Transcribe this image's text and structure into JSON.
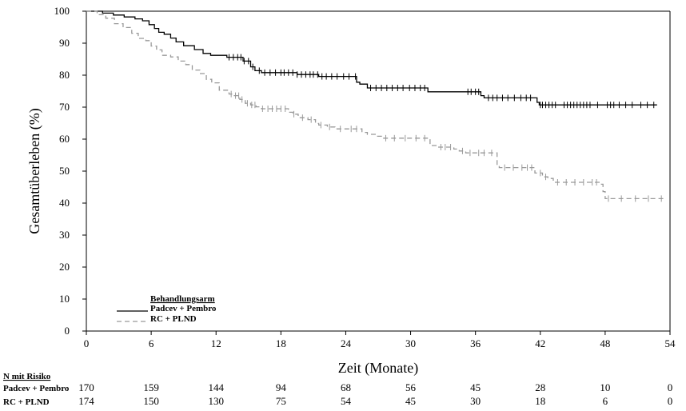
{
  "chart_data": {
    "type": "line",
    "xlabel": "Zeit (Monate)",
    "ylabel": "Gesamtüberleben (%)",
    "xlim": [
      0,
      54
    ],
    "ylim": [
      0,
      100
    ],
    "x_ticks": [
      0,
      6,
      12,
      18,
      24,
      30,
      36,
      42,
      48,
      54
    ],
    "y_ticks": [
      0,
      10,
      20,
      30,
      40,
      50,
      60,
      70,
      80,
      90,
      100
    ],
    "legend": {
      "title": "Behandlungsarm",
      "position": "bottom-left",
      "entries": [
        "Padcev + Pembro",
        "RC + PLND"
      ]
    },
    "series": [
      {
        "name": "Padcev + Pembro",
        "color": "#000000",
        "style": "solid",
        "step": [
          [
            0,
            100
          ],
          [
            1.5,
            99.4
          ],
          [
            2.5,
            98.8
          ],
          [
            3.5,
            98.2
          ],
          [
            4.5,
            97.6
          ],
          [
            5.2,
            97
          ],
          [
            5.8,
            95.8
          ],
          [
            6.3,
            94.6
          ],
          [
            6.7,
            93.4
          ],
          [
            7.2,
            92.8
          ],
          [
            7.8,
            91.6
          ],
          [
            8.3,
            90.4
          ],
          [
            9,
            89.2
          ],
          [
            10,
            88
          ],
          [
            10.8,
            86.8
          ],
          [
            11.5,
            86.2
          ],
          [
            13,
            85.6
          ],
          [
            14.5,
            84.4
          ],
          [
            15.2,
            82.6
          ],
          [
            15.6,
            81.4
          ],
          [
            16.2,
            80.8
          ],
          [
            19.5,
            80.2
          ],
          [
            21.5,
            79.6
          ],
          [
            25,
            77.8
          ],
          [
            25.3,
            77.2
          ],
          [
            26,
            76
          ],
          [
            31.6,
            74.8
          ],
          [
            36.5,
            73.6
          ],
          [
            36.8,
            72.9
          ],
          [
            41.7,
            71.5
          ],
          [
            41.9,
            70.7
          ],
          [
            52.8,
            70.7
          ]
        ],
        "censor": [
          13.2,
          13.6,
          14,
          14.3,
          14.6,
          15,
          15.4,
          16,
          16.5,
          17,
          17.5,
          18,
          18.3,
          18.7,
          19.1,
          19.5,
          19.9,
          20.3,
          20.7,
          21,
          21.4,
          21.8,
          22.2,
          22.7,
          23.2,
          23.8,
          24.3,
          24.9,
          26.3,
          26.8,
          27.3,
          27.8,
          28.3,
          28.8,
          29.3,
          29.9,
          30.4,
          30.9,
          31.3,
          35.3,
          35.6,
          36,
          36.3,
          37.2,
          37.6,
          38,
          38.5,
          39,
          39.6,
          40.2,
          40.7,
          41.1,
          42,
          42.2,
          42.5,
          42.8,
          43.1,
          43.4,
          44.2,
          44.5,
          44.8,
          45.1,
          45.4,
          45.7,
          46,
          46.3,
          46.6,
          47.3,
          48.2,
          48.5,
          48.8,
          49.3,
          49.9,
          50.5,
          51.3,
          51.9,
          52.5
        ]
      },
      {
        "name": "RC + PLND",
        "color": "#999999",
        "style": "dashed",
        "step": [
          [
            0,
            100
          ],
          [
            1,
            98.9
          ],
          [
            1.8,
            97.8
          ],
          [
            2.6,
            96.1
          ],
          [
            3.4,
            94.9
          ],
          [
            4.2,
            93.1
          ],
          [
            4.8,
            91.5
          ],
          [
            5.5,
            90.8
          ],
          [
            6,
            89.1
          ],
          [
            6.5,
            87.9
          ],
          [
            7,
            86.2
          ],
          [
            7.8,
            85.7
          ],
          [
            8.5,
            84.4
          ],
          [
            9.2,
            83.3
          ],
          [
            9.8,
            81.6
          ],
          [
            10.5,
            80.5
          ],
          [
            11.1,
            78.7
          ],
          [
            11.6,
            77.6
          ],
          [
            12.3,
            75.3
          ],
          [
            13.2,
            74.1
          ],
          [
            13.6,
            73.6
          ],
          [
            14.2,
            72.4
          ],
          [
            14.7,
            71.2
          ],
          [
            15.2,
            70.7
          ],
          [
            15.7,
            70.1
          ],
          [
            16.2,
            69.5
          ],
          [
            18.7,
            68.4
          ],
          [
            19.1,
            67.8
          ],
          [
            19.6,
            66.7
          ],
          [
            20.5,
            66.1
          ],
          [
            21.2,
            64.9
          ],
          [
            21.5,
            64.4
          ],
          [
            22.3,
            63.8
          ],
          [
            23,
            63.2
          ],
          [
            25.5,
            62.1
          ],
          [
            26,
            61.5
          ],
          [
            26.8,
            60.9
          ],
          [
            27.3,
            60.3
          ],
          [
            31.8,
            58
          ],
          [
            32.5,
            57.5
          ],
          [
            34,
            56.9
          ],
          [
            34.5,
            56.3
          ],
          [
            35.1,
            55.7
          ],
          [
            38,
            51.7
          ],
          [
            38.2,
            51.1
          ],
          [
            41.5,
            49.4
          ],
          [
            42.2,
            48.2
          ],
          [
            42.7,
            47.7
          ],
          [
            43.2,
            46.5
          ],
          [
            47.5,
            45.9
          ],
          [
            47.8,
            43.6
          ],
          [
            48,
            41.4
          ],
          [
            53.5,
            41.4
          ]
        ],
        "censor": [
          13.4,
          13.8,
          14.1,
          14.4,
          14.9,
          15.3,
          15.6,
          16.3,
          16.8,
          17.2,
          17.6,
          18,
          18.4,
          19.2,
          20,
          20.8,
          21.7,
          22.5,
          23.5,
          24.5,
          25,
          27.7,
          28.5,
          29.5,
          30.5,
          31.3,
          32.8,
          33.2,
          33.7,
          34.8,
          35.5,
          36.3,
          36.8,
          37.5,
          38.7,
          39.5,
          40.3,
          40.8,
          41.2,
          42,
          42.5,
          43.6,
          44.4,
          45.2,
          46,
          46.8,
          47.2,
          48.3,
          49.5,
          50.8,
          52,
          53.2
        ]
      }
    ],
    "at_risk": {
      "title": "N mit Risiko",
      "times": [
        0,
        6,
        12,
        18,
        24,
        30,
        36,
        42,
        48,
        54
      ],
      "rows": [
        {
          "label": "Padcev + Pembro",
          "values": [
            "170",
            "159",
            "144",
            "94",
            "68",
            "56",
            "45",
            "28",
            "10",
            "0"
          ]
        },
        {
          "label": "RC + PLND",
          "values": [
            "174",
            "150",
            "130",
            "75",
            "54",
            "45",
            "30",
            "18",
            "6",
            "0"
          ]
        }
      ]
    }
  }
}
